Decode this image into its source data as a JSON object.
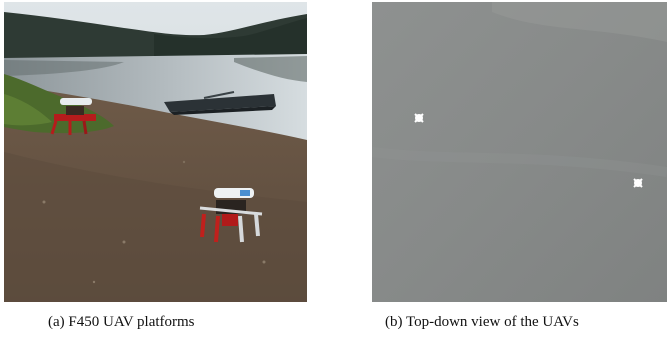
{
  "figure": {
    "subfigures": [
      {
        "id": "a",
        "caption": "(a) F450 UAV platforms",
        "image": "lakeside-photo-with-two-quadcopters"
      },
      {
        "id": "b",
        "caption": "(b) Top-down view of the UAVs",
        "image": "aerial-grey-view-with-two-uav-markers"
      }
    ]
  }
}
